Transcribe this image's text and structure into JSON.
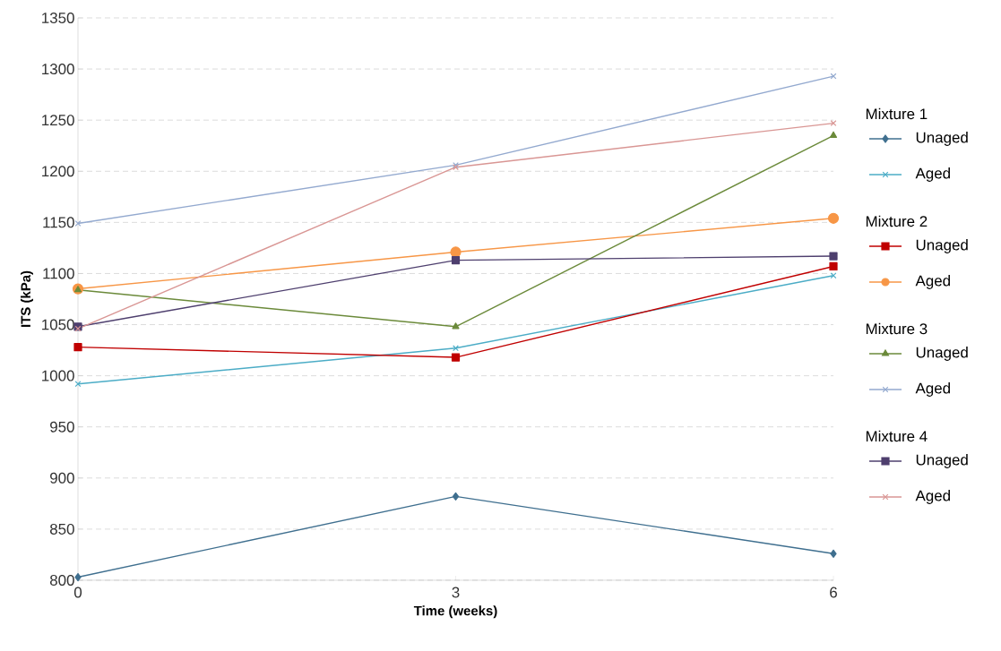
{
  "chart_data": {
    "type": "line",
    "xlabel": "Time (weeks)",
    "ylabel": "ITS (kPa)",
    "x": [
      0,
      3,
      6
    ],
    "xlim": [
      0,
      6
    ],
    "xticks": [
      0,
      3,
      6
    ],
    "ylim": [
      800,
      1350
    ],
    "yticks": [
      800,
      850,
      900,
      950,
      1000,
      1050,
      1100,
      1150,
      1200,
      1250,
      1300,
      1350
    ],
    "grid": "y",
    "legend": "right",
    "annotations": [
      "Mixture 1",
      "Mixture 2",
      "Mixture 3",
      "Mixture 4"
    ],
    "series": [
      {
        "name": "Unaged",
        "color": "#3f6f8f",
        "marker": "diamond",
        "values": [
          803,
          882,
          826
        ]
      },
      {
        "name": "Aged",
        "color": "#4bacc6",
        "marker": "cross",
        "values": [
          992,
          1027,
          1098
        ]
      },
      {
        "name": "Unaged",
        "color": "#c00000",
        "marker": "square",
        "values": [
          1028,
          1018,
          1107
        ]
      },
      {
        "name": "Aged",
        "color": "#f79646",
        "marker": "circle",
        "values": [
          1085,
          1121,
          1154
        ]
      },
      {
        "name": "Unaged",
        "color": "#6b8a3a",
        "marker": "triangle",
        "values": [
          1084,
          1048,
          1235
        ]
      },
      {
        "name": "Aged",
        "color": "#93a9cf",
        "marker": "cross",
        "values": [
          1149,
          1206,
          1293
        ]
      },
      {
        "name": "Unaged",
        "color": "#4e3f6e",
        "marker": "square",
        "values": [
          1048,
          1113,
          1117
        ]
      },
      {
        "name": "Aged",
        "color": "#d99694",
        "marker": "cross",
        "values": [
          1046,
          1204,
          1247
        ]
      }
    ]
  }
}
